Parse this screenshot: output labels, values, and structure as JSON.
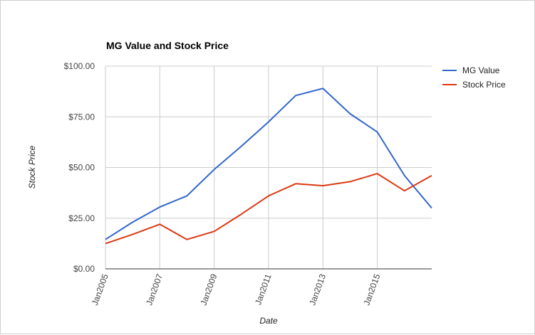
{
  "chart_data": {
    "type": "line",
    "title": "MG Value and Stock Price",
    "xlabel": "Date",
    "ylabel": "Stock Price",
    "x": [
      "2005-01-01",
      "2006-01-01",
      "2007-01-01",
      "2008-01-01",
      "2009-01-01",
      "2010-01-01",
      "2011-01-01",
      "2012-01-01",
      "2013-01-01",
      "2014-01-01",
      "2015-01-01",
      "2016-01-01",
      "2017-01-01"
    ],
    "xlim": [
      "2005-01-01",
      "2017-01-01"
    ],
    "x_ticks": [
      "2005-01-01",
      "2007-01-01",
      "2009-01-01",
      "2011-01-01",
      "2013-01-01",
      "2015-01-01"
    ],
    "x_tick_labels": [
      "Jan2005",
      "Jan2007",
      "Jan2009",
      "Jan2011",
      "Jan2013",
      "Jan2015"
    ],
    "ylim": [
      0,
      100
    ],
    "y_ticks": [
      0,
      25,
      50,
      75,
      100
    ],
    "y_tick_labels": [
      "$0.00",
      "$25.00",
      "$50.00",
      "$75.00",
      "$100.00"
    ],
    "grid": true,
    "legend_position": "right",
    "series": [
      {
        "name": "MG Value",
        "color": "#3366cc",
        "values": [
          14.5,
          23.0,
          30.5,
          36.0,
          49.0,
          60.5,
          72.5,
          85.5,
          89.0,
          76.5,
          67.5,
          46.0,
          30.0
        ]
      },
      {
        "name": "Stock Price",
        "color": "#dc3912",
        "values": [
          12.5,
          17.0,
          22.0,
          14.5,
          18.5,
          27.0,
          36.0,
          42.0,
          41.0,
          43.0,
          47.0,
          38.5,
          46.0
        ]
      }
    ]
  }
}
